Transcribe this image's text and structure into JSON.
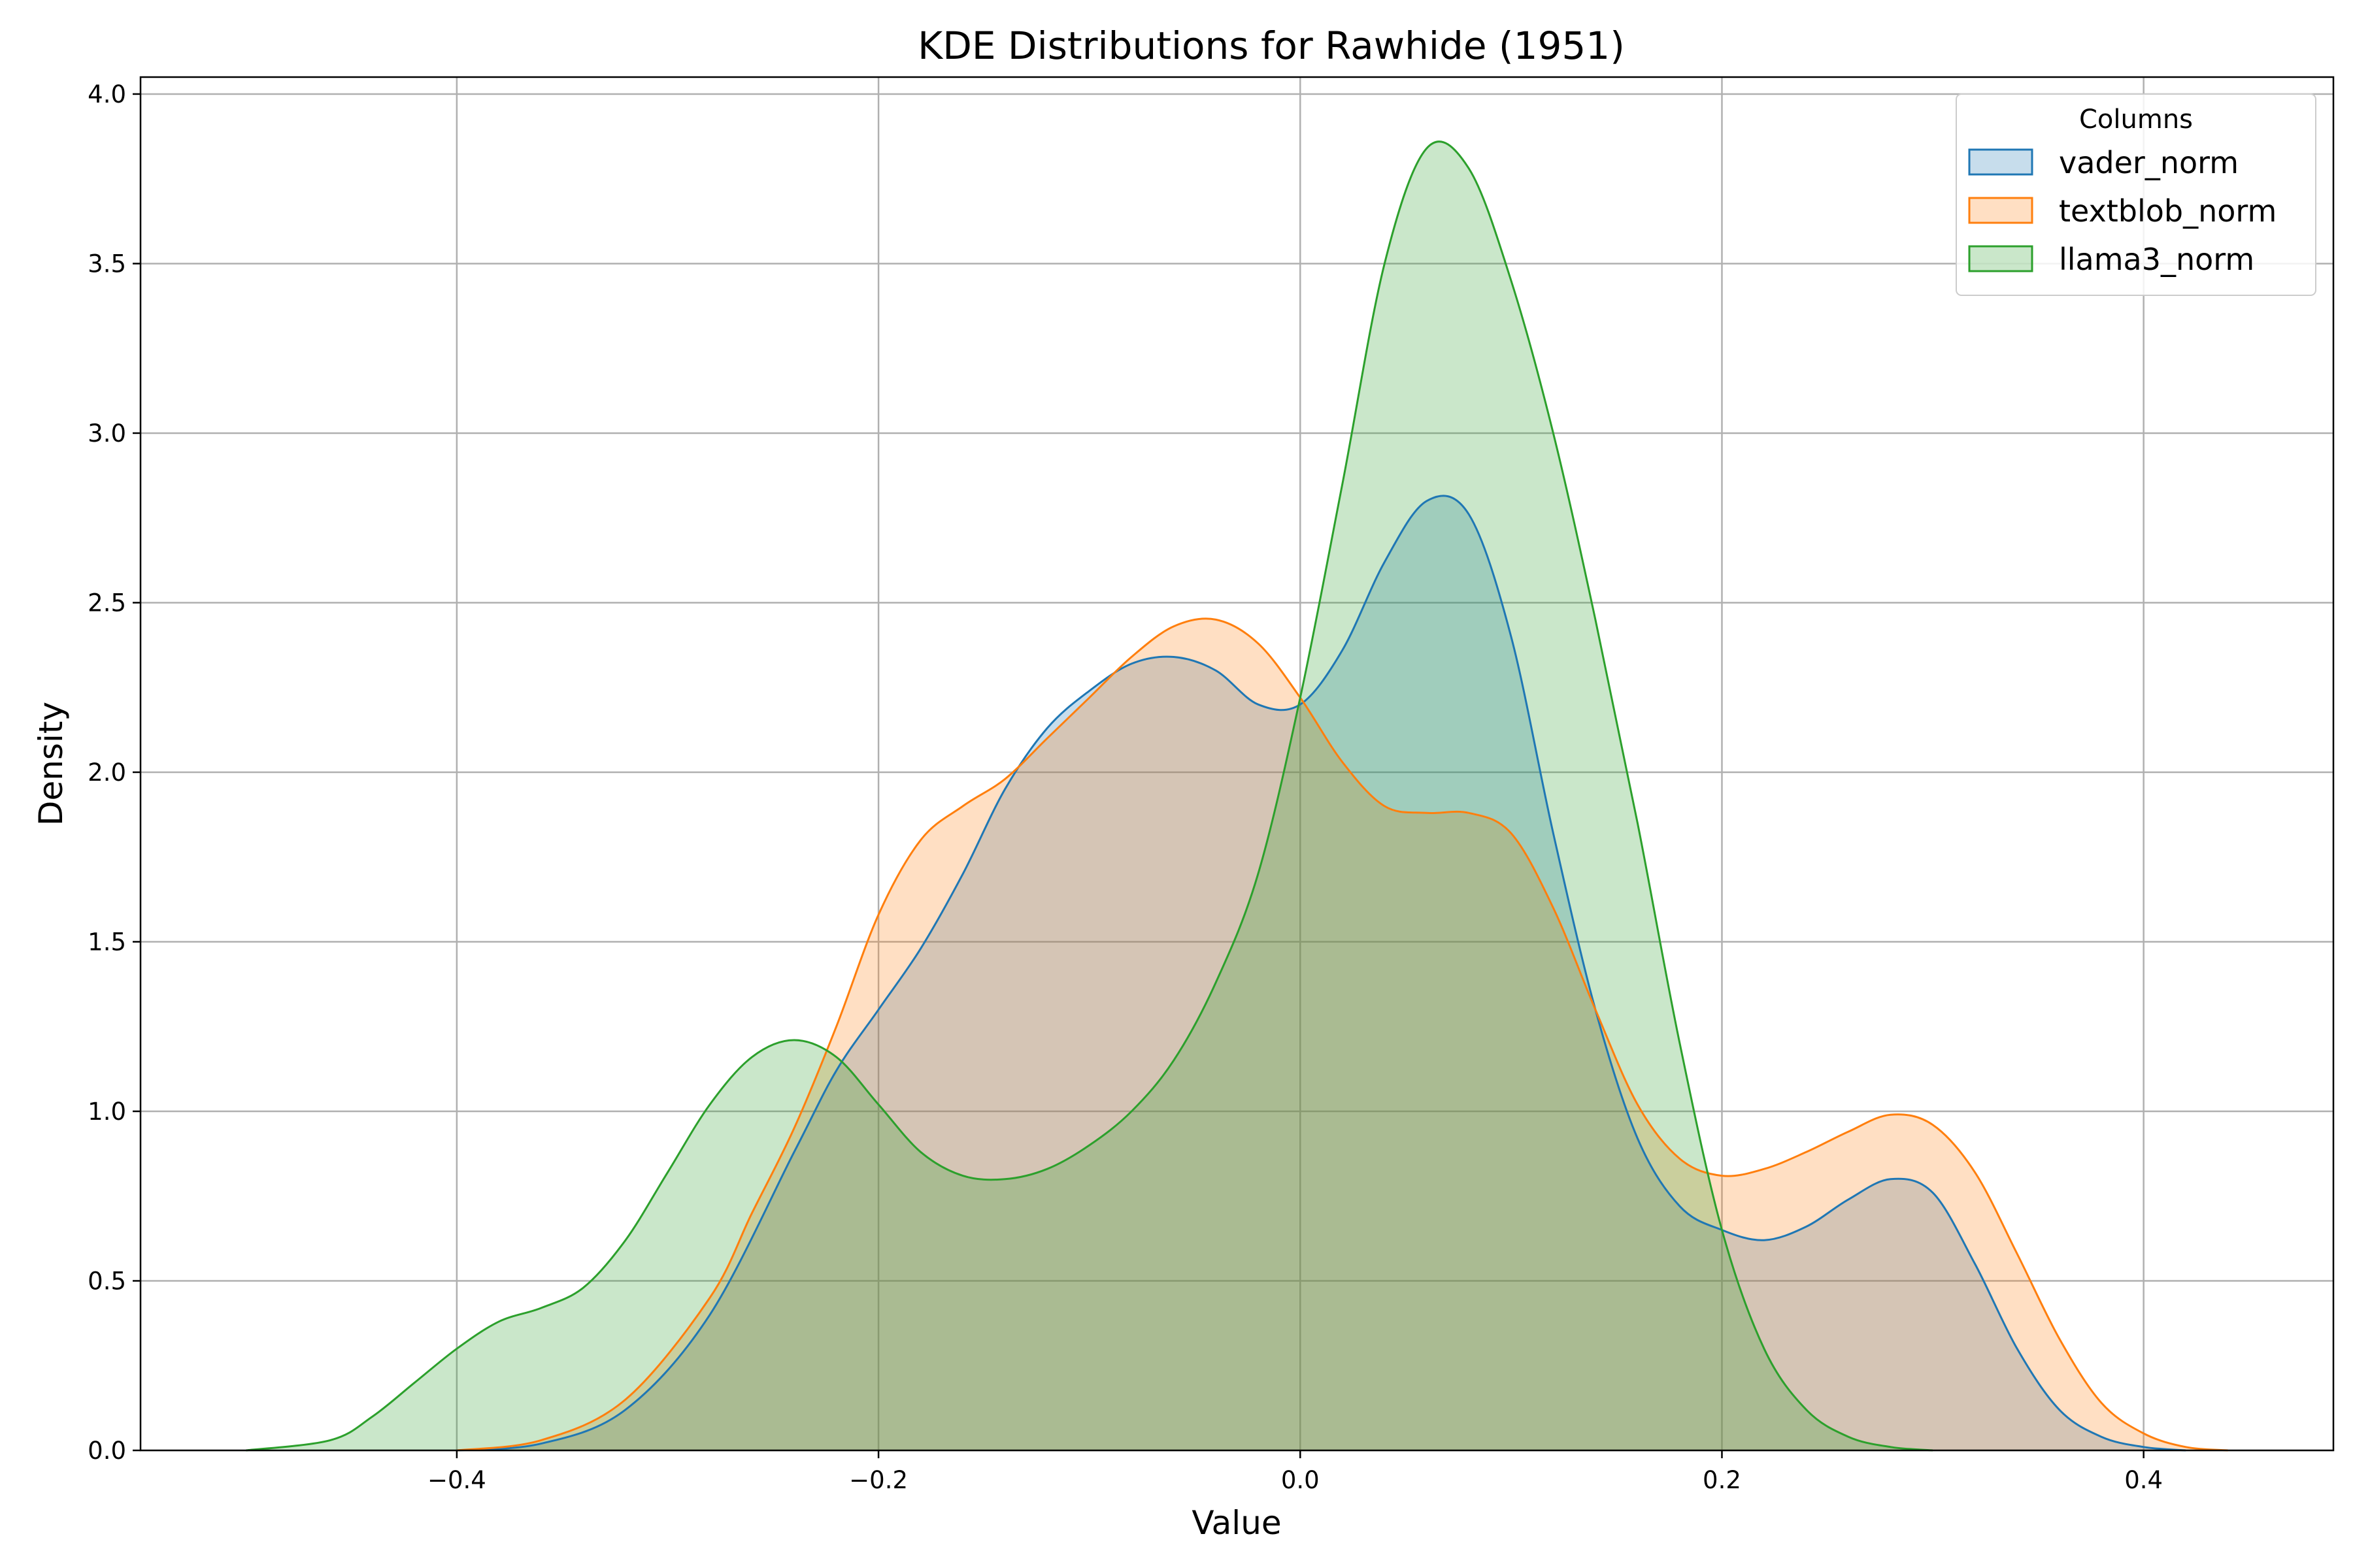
{
  "chart_data": {
    "type": "area",
    "title": "KDE Distributions for Rawhide (1951)",
    "xlabel": "Value",
    "ylabel": "Density",
    "xlim": [
      -0.55,
      0.49
    ],
    "ylim": [
      0,
      4.05
    ],
    "xticks": [
      -0.4,
      -0.2,
      0.0,
      0.2,
      0.4
    ],
    "xtick_labels": [
      "−0.4",
      "−0.2",
      "0.0",
      "0.2",
      "0.4"
    ],
    "yticks": [
      0.0,
      0.5,
      1.0,
      1.5,
      2.0,
      2.5,
      3.0,
      3.5,
      4.0
    ],
    "ytick_labels": [
      "0.0",
      "0.5",
      "1.0",
      "1.5",
      "2.0",
      "2.5",
      "3.0",
      "3.5",
      "4.0"
    ],
    "grid": true,
    "legend": {
      "title": "Columns",
      "placement": "top-right"
    },
    "series": [
      {
        "name": "vader_norm",
        "color": "#1f77b4",
        "points": [
          [
            -0.4,
            0.0
          ],
          [
            -0.36,
            0.02
          ],
          [
            -0.32,
            0.12
          ],
          [
            -0.28,
            0.4
          ],
          [
            -0.24,
            0.88
          ],
          [
            -0.22,
            1.12
          ],
          [
            -0.2,
            1.3
          ],
          [
            -0.18,
            1.48
          ],
          [
            -0.16,
            1.7
          ],
          [
            -0.14,
            1.95
          ],
          [
            -0.12,
            2.13
          ],
          [
            -0.1,
            2.24
          ],
          [
            -0.08,
            2.32
          ],
          [
            -0.06,
            2.34
          ],
          [
            -0.04,
            2.3
          ],
          [
            -0.02,
            2.2
          ],
          [
            0.0,
            2.2
          ],
          [
            0.02,
            2.36
          ],
          [
            0.04,
            2.62
          ],
          [
            0.06,
            2.8
          ],
          [
            0.08,
            2.76
          ],
          [
            0.1,
            2.4
          ],
          [
            0.12,
            1.82
          ],
          [
            0.14,
            1.3
          ],
          [
            0.16,
            0.92
          ],
          [
            0.18,
            0.72
          ],
          [
            0.2,
            0.65
          ],
          [
            0.22,
            0.62
          ],
          [
            0.24,
            0.66
          ],
          [
            0.26,
            0.74
          ],
          [
            0.28,
            0.8
          ],
          [
            0.3,
            0.76
          ],
          [
            0.32,
            0.55
          ],
          [
            0.34,
            0.3
          ],
          [
            0.36,
            0.12
          ],
          [
            0.38,
            0.04
          ],
          [
            0.4,
            0.01
          ],
          [
            0.42,
            0.0
          ]
        ]
      },
      {
        "name": "textblob_norm",
        "color": "#ff7f0e",
        "points": [
          [
            -0.4,
            0.0
          ],
          [
            -0.36,
            0.03
          ],
          [
            -0.32,
            0.15
          ],
          [
            -0.28,
            0.45
          ],
          [
            -0.26,
            0.7
          ],
          [
            -0.24,
            0.95
          ],
          [
            -0.22,
            1.25
          ],
          [
            -0.2,
            1.58
          ],
          [
            -0.18,
            1.8
          ],
          [
            -0.16,
            1.9
          ],
          [
            -0.14,
            1.98
          ],
          [
            -0.12,
            2.1
          ],
          [
            -0.1,
            2.22
          ],
          [
            -0.08,
            2.34
          ],
          [
            -0.06,
            2.43
          ],
          [
            -0.04,
            2.45
          ],
          [
            -0.02,
            2.38
          ],
          [
            0.0,
            2.22
          ],
          [
            0.02,
            2.03
          ],
          [
            0.04,
            1.9
          ],
          [
            0.06,
            1.88
          ],
          [
            0.08,
            1.88
          ],
          [
            0.1,
            1.82
          ],
          [
            0.12,
            1.6
          ],
          [
            0.14,
            1.3
          ],
          [
            0.16,
            1.02
          ],
          [
            0.18,
            0.86
          ],
          [
            0.2,
            0.81
          ],
          [
            0.22,
            0.83
          ],
          [
            0.24,
            0.88
          ],
          [
            0.26,
            0.94
          ],
          [
            0.28,
            0.99
          ],
          [
            0.3,
            0.96
          ],
          [
            0.32,
            0.82
          ],
          [
            0.34,
            0.58
          ],
          [
            0.36,
            0.33
          ],
          [
            0.38,
            0.14
          ],
          [
            0.4,
            0.05
          ],
          [
            0.42,
            0.01
          ],
          [
            0.44,
            0.0
          ]
        ]
      },
      {
        "name": "llama3_norm",
        "color": "#2ca02c",
        "points": [
          [
            -0.5,
            0.0
          ],
          [
            -0.46,
            0.03
          ],
          [
            -0.44,
            0.1
          ],
          [
            -0.42,
            0.2
          ],
          [
            -0.4,
            0.3
          ],
          [
            -0.38,
            0.38
          ],
          [
            -0.36,
            0.42
          ],
          [
            -0.34,
            0.48
          ],
          [
            -0.32,
            0.62
          ],
          [
            -0.3,
            0.82
          ],
          [
            -0.28,
            1.02
          ],
          [
            -0.26,
            1.16
          ],
          [
            -0.24,
            1.21
          ],
          [
            -0.22,
            1.16
          ],
          [
            -0.2,
            1.02
          ],
          [
            -0.18,
            0.88
          ],
          [
            -0.16,
            0.81
          ],
          [
            -0.14,
            0.8
          ],
          [
            -0.12,
            0.83
          ],
          [
            -0.1,
            0.9
          ],
          [
            -0.08,
            1.0
          ],
          [
            -0.06,
            1.15
          ],
          [
            -0.04,
            1.38
          ],
          [
            -0.02,
            1.7
          ],
          [
            0.0,
            2.22
          ],
          [
            0.02,
            2.85
          ],
          [
            0.04,
            3.5
          ],
          [
            0.06,
            3.84
          ],
          [
            0.08,
            3.78
          ],
          [
            0.1,
            3.45
          ],
          [
            0.12,
            3.0
          ],
          [
            0.14,
            2.45
          ],
          [
            0.16,
            1.85
          ],
          [
            0.18,
            1.2
          ],
          [
            0.2,
            0.65
          ],
          [
            0.22,
            0.3
          ],
          [
            0.24,
            0.12
          ],
          [
            0.26,
            0.04
          ],
          [
            0.28,
            0.01
          ],
          [
            0.3,
            0.0
          ]
        ]
      }
    ]
  }
}
